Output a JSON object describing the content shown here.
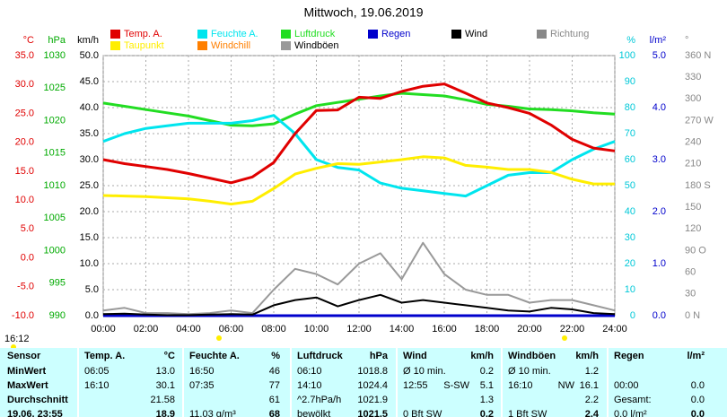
{
  "chart_data": {
    "type": "line",
    "title": "Mittwoch, 19.06.2019",
    "x": [
      0,
      1,
      2,
      3,
      4,
      5,
      6,
      7,
      8,
      9,
      10,
      11,
      12,
      13,
      14,
      15,
      16,
      17,
      18,
      19,
      20,
      21,
      22,
      23,
      24
    ],
    "xlim": [
      0,
      24
    ],
    "xticks": [
      {
        "value": 0,
        "label": "00:00"
      },
      {
        "value": 2,
        "label": "02:00"
      },
      {
        "value": 4,
        "label": "04:00"
      },
      {
        "value": 6,
        "label": "06:00"
      },
      {
        "value": 8,
        "label": "08:00"
      },
      {
        "value": 10,
        "label": "10:00"
      },
      {
        "value": 12,
        "label": "12:00"
      },
      {
        "value": 14,
        "label": "14:00"
      },
      {
        "value": 16,
        "label": "16:00"
      },
      {
        "value": 18,
        "label": "18:00"
      },
      {
        "value": 20,
        "label": "20:00"
      },
      {
        "value": 22,
        "label": "22:00"
      },
      {
        "value": 24,
        "label": "24:00"
      }
    ],
    "grid": true,
    "axes": [
      {
        "id": "temp",
        "label": "°C",
        "color": "#e00000",
        "side": "left",
        "lim": [
          -10,
          35
        ],
        "ticks": [
          {
            "value": 35,
            "label": "35.0"
          },
          {
            "value": 30,
            "label": "30.0"
          },
          {
            "value": 25,
            "label": "25.0"
          },
          {
            "value": 20,
            "label": "20.0"
          },
          {
            "value": 15,
            "label": "15.0"
          },
          {
            "value": 10,
            "label": "10.0"
          },
          {
            "value": 5,
            "label": "5.0"
          },
          {
            "value": 0,
            "label": "0.0"
          },
          {
            "value": -5,
            "label": "-5.0"
          },
          {
            "value": -10,
            "label": "-10.0"
          }
        ]
      },
      {
        "id": "hpa",
        "label": "hPa",
        "color": "#00aa00",
        "side": "left",
        "lim": [
          990,
          1030
        ],
        "ticks": [
          1030,
          1025,
          1020,
          1015,
          1010,
          1005,
          1000,
          995,
          990
        ]
      },
      {
        "id": "kmh",
        "label": "km/h",
        "color": "#000000",
        "side": "left",
        "lim": [
          0,
          50
        ],
        "grid": true,
        "ticks": [
          {
            "value": 50,
            "label": "50.0"
          },
          {
            "value": 45,
            "label": "45.0"
          },
          {
            "value": 40,
            "label": "40.0"
          },
          {
            "value": 35,
            "label": "35.0"
          },
          {
            "value": 30,
            "label": "30.0"
          },
          {
            "value": 25,
            "label": "25.0"
          },
          {
            "value": 20,
            "label": "20.0"
          },
          {
            "value": 15,
            "label": "15.0"
          },
          {
            "value": 10,
            "label": "10.0"
          },
          {
            "value": 5,
            "label": "5.0"
          },
          {
            "value": 0,
            "label": "0.0"
          }
        ]
      },
      {
        "id": "pct",
        "label": "%",
        "color": "#00c8d8",
        "side": "right",
        "lim": [
          0,
          100
        ],
        "ticks": [
          100,
          90,
          80,
          70,
          60,
          50,
          40,
          30,
          20,
          10,
          0
        ]
      },
      {
        "id": "rain",
        "label": "l/m²",
        "color": "#0000cc",
        "side": "right",
        "lim": [
          0,
          5
        ],
        "ticks": [
          {
            "value": 5,
            "label": "5.0"
          },
          {
            "value": 4,
            "label": "4.0"
          },
          {
            "value": 3,
            "label": "3.0"
          },
          {
            "value": 2,
            "label": "2.0"
          },
          {
            "value": 1,
            "label": "1.0"
          },
          {
            "value": 0,
            "label": "0.0"
          }
        ]
      },
      {
        "id": "dir",
        "label": "°",
        "color": "#888888",
        "side": "right",
        "lim": [
          0,
          360
        ],
        "ticks": [
          {
            "value": 360,
            "label": "360 N"
          },
          330,
          300,
          {
            "value": 270,
            "label": "270 W"
          },
          240,
          210,
          {
            "value": 180,
            "label": "180 S"
          },
          150,
          120,
          {
            "value": 90,
            "label": "90 O"
          },
          60,
          30,
          {
            "value": 0,
            "label": "0 N"
          }
        ]
      }
    ],
    "series": [
      {
        "name": "Temp. A.",
        "color": "#e00000",
        "axis": "temp",
        "values": [
          17.0,
          16.3,
          15.8,
          15.3,
          14.6,
          13.8,
          13.0,
          14.0,
          16.5,
          21.5,
          25.5,
          25.6,
          27.8,
          27.6,
          28.8,
          29.7,
          30.1,
          28.5,
          26.8,
          26.0,
          25.0,
          23.0,
          20.5,
          19.0,
          18.5
        ]
      },
      {
        "name": "Feuchte A.",
        "color": "#00e5ee",
        "axis": "pct",
        "values": [
          67,
          70,
          72,
          73,
          74,
          74,
          74,
          75,
          77,
          70,
          60,
          57,
          56,
          51,
          49,
          48,
          47,
          46,
          50,
          54,
          55,
          55,
          60,
          64,
          67
        ]
      },
      {
        "name": "Luftdruck",
        "color": "#22dd22",
        "axis": "hpa",
        "values": [
          1022.7,
          1022.2,
          1021.7,
          1021.2,
          1020.7,
          1020.0,
          1019.3,
          1019.2,
          1019.5,
          1021.0,
          1022.3,
          1022.8,
          1023.3,
          1023.8,
          1024.2,
          1024.0,
          1023.8,
          1023.2,
          1022.5,
          1022.2,
          1021.8,
          1021.7,
          1021.5,
          1021.2,
          1021.0
        ]
      },
      {
        "name": "Regen",
        "color": "#0000cc",
        "axis": "rain",
        "values": [
          0,
          0,
          0,
          0,
          0,
          0,
          0,
          0,
          0,
          0,
          0,
          0,
          0,
          0,
          0,
          0,
          0,
          0,
          0,
          0,
          0,
          0,
          0,
          0,
          0
        ]
      },
      {
        "name": "Wind",
        "color": "#000000",
        "axis": "kmh",
        "values": [
          0.3,
          0.4,
          0.2,
          0.1,
          0.1,
          0.2,
          0.3,
          0.2,
          2.0,
          3.0,
          3.5,
          1.8,
          3.0,
          4.0,
          2.5,
          3.0,
          2.5,
          2.0,
          1.5,
          1.0,
          0.8,
          1.5,
          1.2,
          0.5,
          0.3
        ]
      },
      {
        "name": "Richtung",
        "color": "#888888",
        "axis": "dir"
      },
      {
        "name": "Taupunkt",
        "color": "#ffee00",
        "axis": "temp",
        "values": [
          10.8,
          10.7,
          10.6,
          10.4,
          10.2,
          9.8,
          9.3,
          9.8,
          12.0,
          14.5,
          15.5,
          16.3,
          16.2,
          16.6,
          17.0,
          17.5,
          17.3,
          16.0,
          15.7,
          15.3,
          15.3,
          14.8,
          13.6,
          12.8,
          12.8
        ]
      },
      {
        "name": "Windchill",
        "color": "#ff7f00",
        "axis": "temp"
      },
      {
        "name": "Windböen",
        "color": "#999999",
        "axis": "kmh",
        "values": [
          1,
          1.5,
          0.5,
          0.5,
          0.3,
          0.5,
          1,
          0.5,
          5,
          9,
          8,
          6,
          10,
          12,
          7,
          14,
          8,
          5,
          4,
          4,
          2.5,
          3,
          3,
          2,
          1
        ]
      }
    ]
  },
  "time_label": "16:12",
  "table": {
    "header": {
      "label": "Sensor",
      "groups": [
        {
          "left": "Temp. A.",
          "right": "°C"
        },
        {
          "left": "Feuchte A.",
          "right": "%"
        },
        {
          "left": "Luftdruck",
          "right": "hPa"
        },
        {
          "left": "Wind",
          "right": "km/h"
        },
        {
          "left": "Windböen",
          "right": "km/h"
        },
        {
          "left": "Regen",
          "right": "l/m²"
        }
      ]
    },
    "rows": [
      {
        "label": "MinWert",
        "groups": [
          {
            "left": "06:05",
            "right": "13.0"
          },
          {
            "left": "16:50",
            "right": "46"
          },
          {
            "left": "06:10",
            "right": "1018.8"
          },
          {
            "left": "Ø 10 min.",
            "right": "0.2"
          },
          {
            "left": "Ø 10 min.",
            "right": "1.2"
          },
          {}
        ]
      },
      {
        "label": "MaxWert",
        "groups": [
          {
            "left": "16:10",
            "right": "30.1"
          },
          {
            "left": "07:35",
            "right": "77"
          },
          {
            "left": "14:10",
            "right": "1024.4"
          },
          {
            "left": "12:55",
            "mid": "S-SW",
            "right": "5.1"
          },
          {
            "left": "16:10",
            "mid": "NW",
            "right": "16.1"
          },
          {
            "left": "00:00",
            "right": "0.0"
          }
        ]
      },
      {
        "label": "Durchschnitt",
        "groups": [
          {
            "right": "21.58"
          },
          {
            "right": "61"
          },
          {
            "left": "^2.7hPa/h",
            "right": "1021.9"
          },
          {
            "right": "1.3"
          },
          {
            "right": "2.2"
          },
          {
            "left": "Gesamt:",
            "right": "0.0"
          }
        ]
      },
      {
        "label": "19.06. 23:55",
        "groups": [
          {
            "right": "18.9"
          },
          {
            "left": "11.03 g/m³",
            "right": "68"
          },
          {
            "left": "bewölkt",
            "right": "1021.5"
          },
          {
            "left": "0 Bft SW",
            "right": "0.2"
          },
          {
            "left": "1 Bft SW",
            "right": "2.4"
          },
          {
            "left": "0.0 l/m²",
            "right": "0.0"
          }
        ]
      }
    ]
  }
}
